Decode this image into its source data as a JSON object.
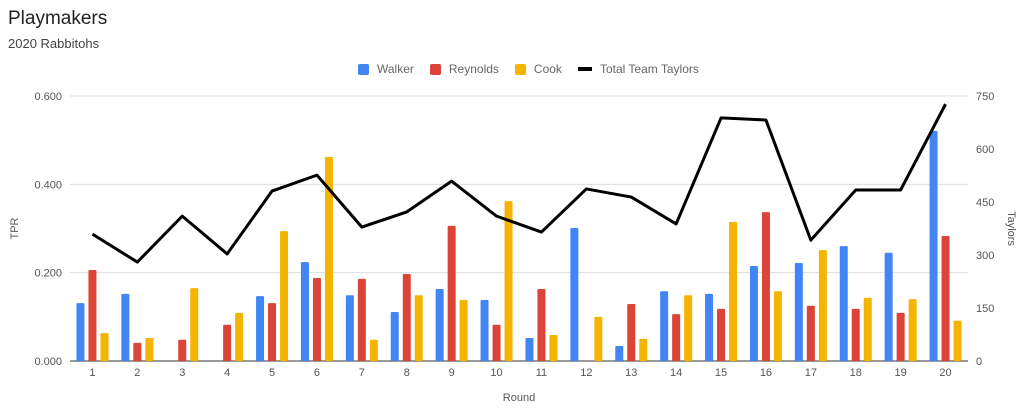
{
  "chart_data": {
    "type": "bar",
    "title": "Playmakers",
    "subtitle": "2020 Rabbitohs",
    "xlabel": "Round",
    "ylabel": "TPR",
    "y2label": "Taylors",
    "ylim": [
      0,
      0.6
    ],
    "y2lim": [
      0,
      750
    ],
    "yticks": [
      "0.000",
      "0.200",
      "0.400",
      "0.600"
    ],
    "y2ticks": [
      "0",
      "150",
      "300",
      "450",
      "600",
      "750"
    ],
    "legend_position": "top",
    "categories": [
      "1",
      "2",
      "3",
      "4",
      "5",
      "6",
      "7",
      "8",
      "9",
      "10",
      "11",
      "12",
      "13",
      "14",
      "15",
      "16",
      "17",
      "18",
      "19",
      "20"
    ],
    "series": [
      {
        "name": "Walker",
        "color": "#4285f4",
        "type": "bar",
        "values": [
          0.131,
          0.152,
          0,
          0,
          0.147,
          0.224,
          0.149,
          0.111,
          0.163,
          0.138,
          0.052,
          0.301,
          0.034,
          0.158,
          0.152,
          0.215,
          0.222,
          0.26,
          0.245,
          0.521
        ]
      },
      {
        "name": "Reynolds",
        "color": "#db4437",
        "type": "bar",
        "values": [
          0.206,
          0.041,
          0.048,
          0.082,
          0.131,
          0.188,
          0.186,
          0.197,
          0.306,
          0.082,
          0.163,
          0,
          0.129,
          0.106,
          0.118,
          0.337,
          0.125,
          0.118,
          0.109,
          0.283
        ]
      },
      {
        "name": "Cook",
        "color": "#f4b400",
        "type": "bar",
        "values": [
          0.063,
          0.052,
          0.165,
          0.109,
          0.294,
          0.462,
          0.048,
          0.149,
          0.138,
          0.362,
          0.059,
          0.1,
          0.05,
          0.149,
          0.315,
          0.158,
          0.251,
          0.143,
          0.14,
          0.091
        ]
      },
      {
        "name": "Total Team Taylors",
        "color": "#000000",
        "type": "line",
        "axis": "right",
        "values": [
          359,
          280,
          410,
          303,
          481,
          526,
          379,
          422,
          509,
          410,
          365,
          487,
          464,
          388,
          688,
          682,
          342,
          484,
          484,
          727
        ]
      }
    ]
  }
}
